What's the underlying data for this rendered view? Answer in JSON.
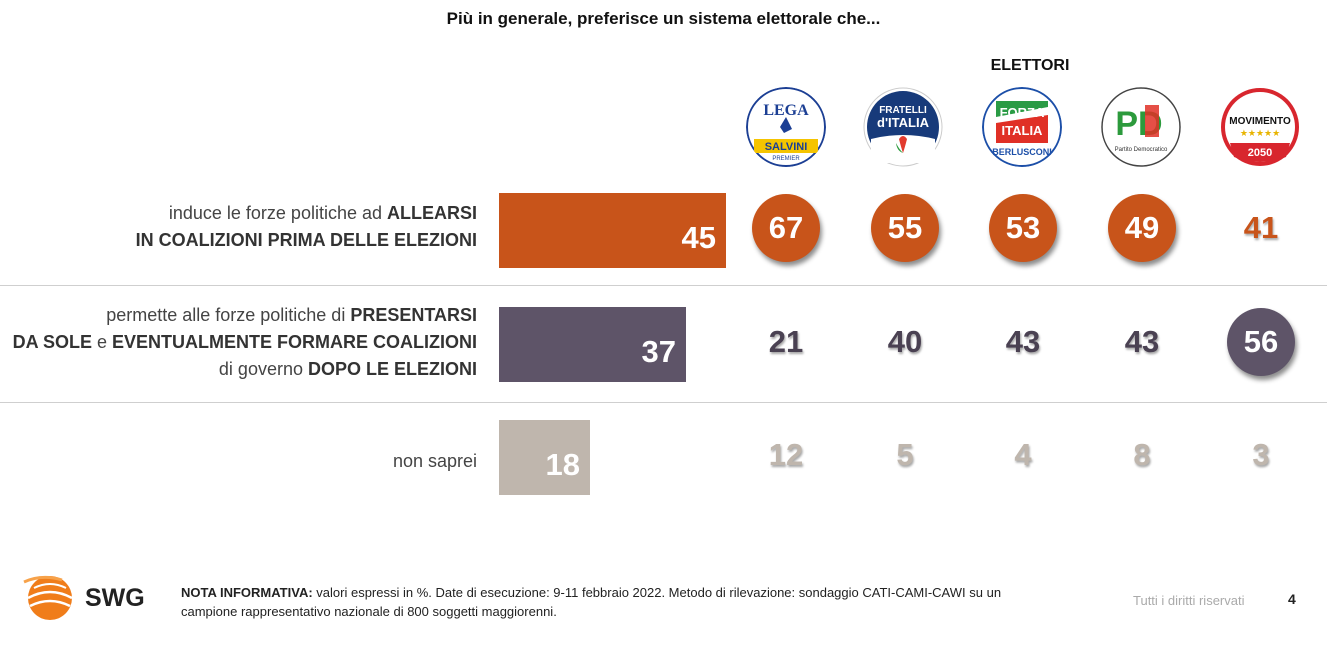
{
  "title": "Più in generale, preferisce un sistema elettorale che...",
  "group_label": "ELETTORI",
  "logos": {
    "lega": {
      "l1": "LEGA",
      "l2": "SALVINI",
      "l3": "PREMIER"
    },
    "fdi": {
      "l1": "FRATELLI",
      "l2": "d'ITALIA"
    },
    "fi": {
      "l1": "FORZA",
      "l2": "ITALIA",
      "l3": "BERLUSCONI"
    },
    "pd": {
      "l1": "PD",
      "l2": "Partito Democratico"
    },
    "m5s": {
      "l1": "MOVIMENTO",
      "l2": "★★★★★",
      "l3": "2050"
    }
  },
  "rows": [
    {
      "label_pre": "induce le forze politiche ad ",
      "label_b1": "ALLEARSI",
      "label_b2": "IN COALIZIONI PRIMA DELLE ELEZIONI"
    },
    {
      "label_pre": "permette alle forze politiche di ",
      "label_b1": "PRESENTARSI",
      "label_b2": "DA SOLE",
      "label_mid": " e ",
      "label_b3": "EVENTUALMENTE FORMARE COALIZIONI",
      "label_pre3": "di governo ",
      "label_b4": "DOPO LE ELEZIONI"
    },
    {
      "label_pre": "non saprei"
    }
  ],
  "chart_data": {
    "type": "table",
    "categories": [
      "ALLEARSI IN COALIZIONI PRIMA DELLE ELEZIONI",
      "PRESENTARSI DA SOLE e EVENTUALMENTE FORMARE COALIZIONI DOPO LE ELEZIONI",
      "non saprei"
    ],
    "bar_colors": [
      "#c8541a",
      "#5e5468",
      "#bfb6ad"
    ],
    "totals": [
      45,
      37,
      18
    ],
    "bar_scale_max": 45,
    "series": [
      {
        "name": "LEGA SALVINI PREMIER",
        "values": [
          67,
          21,
          12
        ],
        "highlight": 0
      },
      {
        "name": "FRATELLI d'ITALIA",
        "values": [
          55,
          40,
          5
        ],
        "highlight": 0
      },
      {
        "name": "FORZA ITALIA BERLUSCONI",
        "values": [
          53,
          43,
          4
        ],
        "highlight": 0
      },
      {
        "name": "PD Partito Democratico",
        "values": [
          49,
          43,
          8
        ],
        "highlight": 0
      },
      {
        "name": "MOVIMENTO 2050",
        "values": [
          41,
          56,
          3
        ],
        "highlight": 1
      }
    ]
  },
  "footer": {
    "brand": "SWG",
    "note_bold": "NOTA INFORMATIVA:",
    "note_text": " valori espressi in %. Date di esecuzione: 9-11 febbraio 2022. Metodo di rilevazione: sondaggio CATI-CAMI-CAWI su un campione rappresentativo nazionale di 800 soggetti maggiorenni.",
    "rights": "Tutti i diritti riservati",
    "page": "4"
  }
}
